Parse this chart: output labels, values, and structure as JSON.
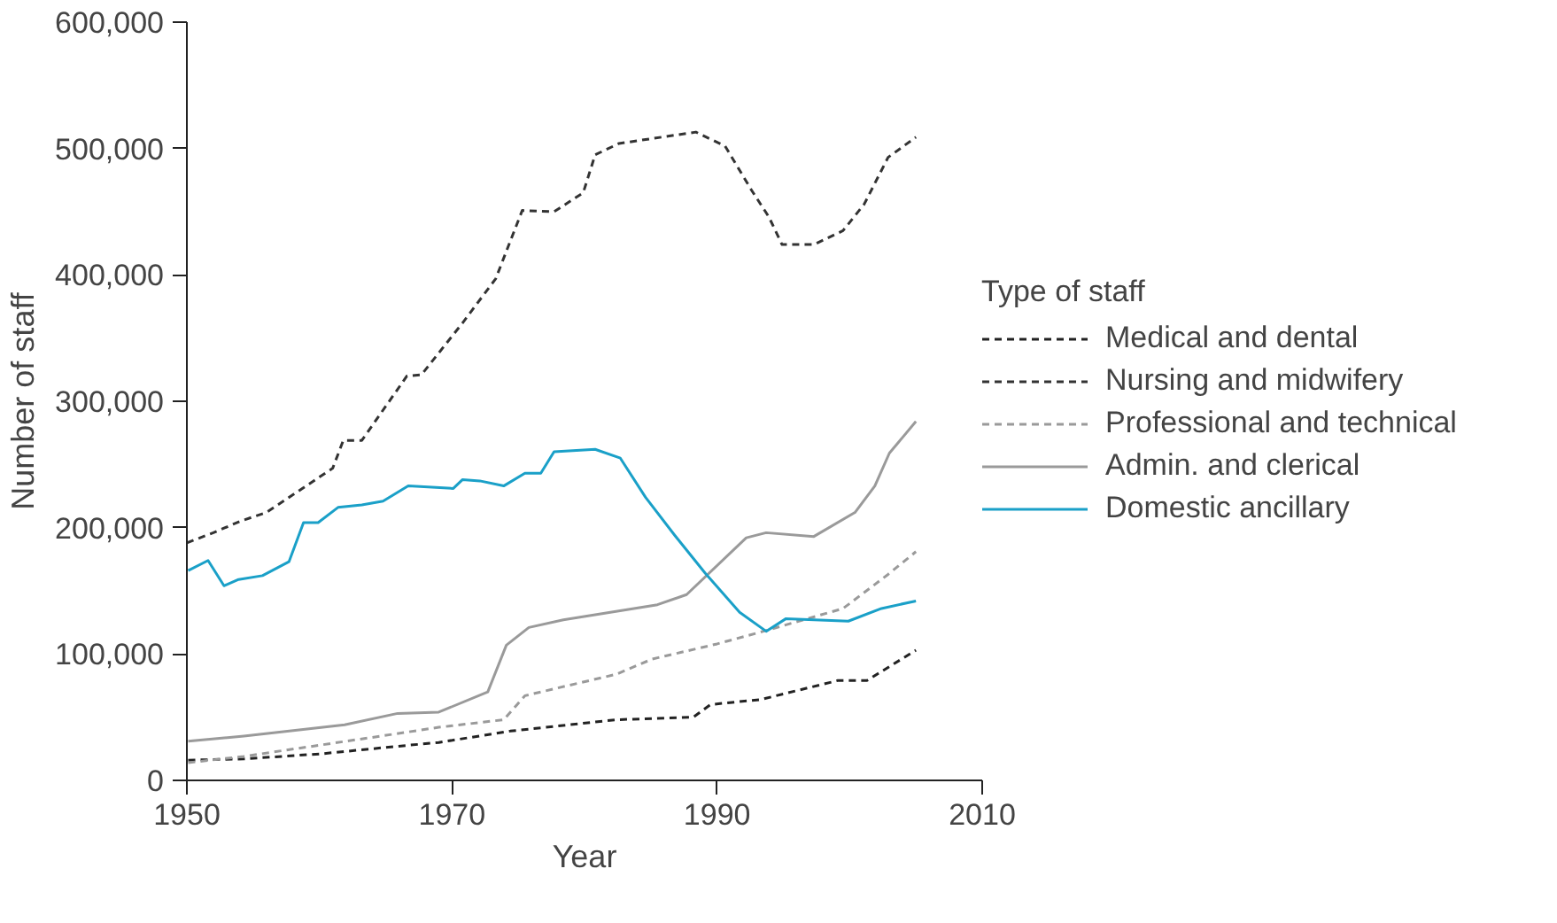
{
  "chart_data": {
    "type": "line",
    "xlabel": "Year",
    "ylabel": "Number of staff",
    "legend_title": "Type of staff",
    "legend": "right",
    "grid": false,
    "xlim": [
      1950,
      2010
    ],
    "xticks": [
      1950,
      1970,
      1990,
      2010
    ],
    "ylim": [
      0,
      600000
    ],
    "yticks": [
      0,
      {
        "value": 100000,
        "label": "100,000"
      },
      {
        "value": 200000,
        "label": "200,000"
      },
      {
        "value": 300000,
        "label": "300,000"
      },
      {
        "value": 400000,
        "label": "400,000"
      },
      {
        "value": 500000,
        "label": "500,000"
      },
      {
        "value": 600000,
        "label": "600,000"
      }
    ],
    "series": [
      {
        "name": "Medical and dental",
        "color": "#222222",
        "line_style": "dashed",
        "x": [
          1950.1,
          1954.3,
          1960.1,
          1965.9,
          1969.0,
          1974.4,
          1982.4,
          1988.2,
          1989.5,
          1993.3,
          1999.1,
          2001.3,
          2005.0
        ],
        "values": [
          16000,
          17000,
          21000,
          27000,
          30000,
          39000,
          48000,
          50000,
          60000,
          64000,
          79000,
          79000,
          103000
        ]
      },
      {
        "name": "Nursing and midwifery",
        "color": "#333333",
        "line_style": "dashed",
        "x": [
          1950.0,
          1952,
          1954,
          1956,
          1958,
          1960,
          1961,
          1961.8,
          1963.2,
          1966.6,
          1967.7,
          1970.8,
          1973.3,
          1975.3,
          1977.7,
          1979.9,
          1980.8,
          1982.6,
          1988.4,
          1990.6,
          1992.6,
          1993.9,
          1994.9,
          1997.3,
          1999.5,
          2001.1,
          2002.9,
          2005.0
        ],
        "values": [
          188000,
          196000,
          205000,
          212000,
          226000,
          240000,
          247000,
          269000,
          269000,
          320000,
          321000,
          362000,
          397000,
          451000,
          450000,
          465000,
          495000,
          504000,
          513000,
          502000,
          467000,
          446000,
          424000,
          424000,
          435000,
          456000,
          493000,
          509000
        ]
      },
      {
        "name": "Professional and technical",
        "color": "#9a9a9a",
        "line_style": "dashed",
        "x": [
          1950.1,
          1954.3,
          1960.1,
          1964.6,
          1969.0,
          1973.9,
          1975.5,
          1982.4,
          1985.1,
          1990.0,
          1993.5,
          1999.5,
          2002.9,
          2005.0
        ],
        "values": [
          14000,
          19000,
          28000,
          35000,
          42000,
          48000,
          67000,
          84000,
          96000,
          108000,
          118000,
          136000,
          163000,
          181000
        ]
      },
      {
        "name": "Admin. and clerical",
        "color": "#9a9a9a",
        "line_style": "solid",
        "x": [
          1950.1,
          1954.3,
          1961.9,
          1965.9,
          1969.0,
          1972.7,
          1974.1,
          1975.8,
          1978.4,
          1985.5,
          1987.7,
          1992.2,
          1993.7,
          1997.3,
          2000.4,
          2001.9,
          2003.0,
          2005.0
        ],
        "values": [
          31000,
          35000,
          44000,
          53000,
          54000,
          70000,
          107000,
          121000,
          127000,
          139000,
          147000,
          192000,
          196000,
          193000,
          212000,
          233000,
          259000,
          284000
        ]
      },
      {
        "name": "Domestic ancillary",
        "color": "#1aa0c8",
        "line_style": "solid",
        "x": [
          1950.1,
          1951.6,
          1952.8,
          1953.9,
          1955.7,
          1957.7,
          1958.8,
          1959.9,
          1961.4,
          1963.2,
          1964.8,
          1966.7,
          1970.1,
          1970.8,
          1972.1,
          1973.9,
          1975.5,
          1976.7,
          1977.7,
          1980.8,
          1982.7,
          1984.6,
          1986.8,
          1989.1,
          1991.7,
          1993.7,
          1995.2,
          1999.9,
          2002.4,
          2005.0
        ],
        "values": [
          166000,
          174000,
          154000,
          159000,
          162000,
          173000,
          204000,
          204000,
          216000,
          218000,
          221000,
          233000,
          231000,
          238000,
          237000,
          233000,
          243000,
          243000,
          260000,
          262000,
          255000,
          224000,
          194000,
          164000,
          133000,
          118000,
          128000,
          126000,
          136000,
          142000
        ]
      }
    ]
  }
}
